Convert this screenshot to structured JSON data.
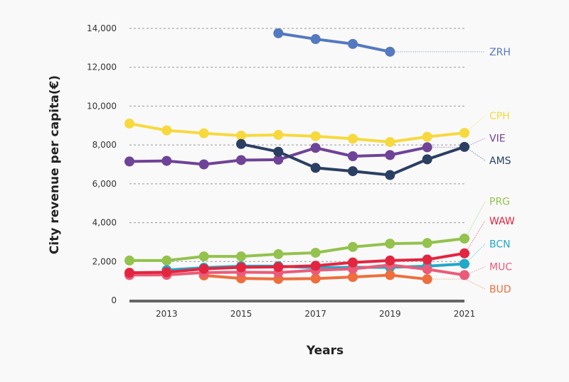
{
  "chart_data": {
    "type": "line",
    "title": "",
    "xlabel": "Years",
    "ylabel": "City revenue per capita(€)",
    "xlim": [
      2012,
      2021
    ],
    "ylim": [
      0,
      14000
    ],
    "x_ticks": [
      2013,
      2015,
      2017,
      2019,
      2021
    ],
    "x_tick_labels": [
      "2013",
      "2015",
      "2017",
      "2019",
      "2021"
    ],
    "y_ticks": [
      0,
      2000,
      4000,
      6000,
      8000,
      10000,
      12000,
      14000
    ],
    "y_tick_labels": [
      "0",
      "2,000",
      "4,000",
      "6,000",
      "8,000",
      "10,000",
      "12,000",
      "14,000"
    ],
    "grid": "horizontal-dashed",
    "legend": "direct-labels-right",
    "series": [
      {
        "name": "ZRH",
        "color": "#5479c0",
        "x": [
          2016,
          2017,
          2018,
          2019
        ],
        "values": [
          13750,
          13450,
          13200,
          12800
        ]
      },
      {
        "name": "CPH",
        "color": "#f7d93e",
        "x": [
          2012,
          2013,
          2014,
          2015,
          2016,
          2017,
          2018,
          2019,
          2020,
          2021
        ],
        "values": [
          9100,
          8750,
          8600,
          8480,
          8520,
          8450,
          8320,
          8150,
          8420,
          8620
        ]
      },
      {
        "name": "VIE",
        "color": "#6f4397",
        "x": [
          2012,
          2013,
          2014,
          2015,
          2016,
          2017,
          2018,
          2019,
          2020
        ],
        "values": [
          7150,
          7180,
          7000,
          7220,
          7240,
          7850,
          7420,
          7480,
          7880
        ]
      },
      {
        "name": "AMS",
        "color": "#2b3f63",
        "x": [
          2015,
          2016,
          2017,
          2018,
          2019,
          2020,
          2021
        ],
        "values": [
          8050,
          7650,
          6820,
          6650,
          6450,
          7260,
          7900
        ]
      },
      {
        "name": "PRG",
        "color": "#93c24d",
        "x": [
          2012,
          2013,
          2014,
          2015,
          2016,
          2017,
          2018,
          2019,
          2020,
          2021
        ],
        "values": [
          2050,
          2050,
          2260,
          2260,
          2380,
          2450,
          2750,
          2920,
          2950,
          3180
        ]
      },
      {
        "name": "BCN",
        "color": "#22a8c9",
        "x": [
          2013,
          2014,
          2015,
          2016,
          2017,
          2018,
          2019,
          2020,
          2021
        ],
        "values": [
          1560,
          1680,
          1760,
          1760,
          1680,
          1700,
          1700,
          1760,
          1880
        ]
      },
      {
        "name": "BUD",
        "color": "#ee6e3d",
        "x": [
          2014,
          2015,
          2016,
          2017,
          2018,
          2019,
          2020
        ],
        "values": [
          1280,
          1130,
          1100,
          1120,
          1200,
          1300,
          1090
        ]
      },
      {
        "name": "MUC",
        "color": "#ea5b78",
        "x": [
          2012,
          2013,
          2014,
          2015,
          2016,
          2017,
          2018,
          2019,
          2020,
          2021
        ],
        "values": [
          1300,
          1310,
          1430,
          1450,
          1430,
          1550,
          1620,
          1820,
          1600,
          1300
        ]
      },
      {
        "name": "WAW",
        "color": "#e3253f",
        "x": [
          2012,
          2013,
          2014,
          2015,
          2016,
          2017,
          2018,
          2019,
          2020,
          2021
        ],
        "values": [
          1420,
          1450,
          1620,
          1700,
          1720,
          1780,
          1950,
          2050,
          2100,
          2420
        ]
      }
    ],
    "direct_labels": [
      {
        "series": "ZRH",
        "text": "ZRH",
        "label_value": 12800
      },
      {
        "series": "CPH",
        "text": "CPH",
        "label_value": 9500
      },
      {
        "series": "VIE",
        "text": "VIE",
        "label_value": 8350
      },
      {
        "series": "AMS",
        "text": "AMS",
        "label_value": 7200
      },
      {
        "series": "PRG",
        "text": "PRG",
        "label_value": 5100
      },
      {
        "series": "WAW",
        "text": "WAW",
        "label_value": 4100
      },
      {
        "series": "BCN",
        "text": "BCN",
        "label_value": 2900
      },
      {
        "series": "MUC",
        "text": "MUC",
        "label_value": 1730
      },
      {
        "series": "BUD",
        "text": "BUD",
        "label_value": 580
      }
    ]
  }
}
